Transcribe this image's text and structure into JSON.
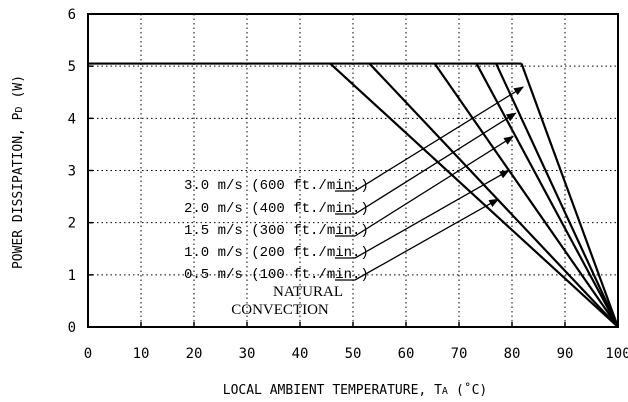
{
  "chart_data": {
    "type": "line",
    "xlabel": "LOCAL AMBIENT TEMPERATURE, T",
    "xlabel_sub": "A",
    "xlabel_unit": "(˚C)",
    "ylabel": "POWER DISSIPATION, P",
    "ylabel_sub": "D",
    "ylabel_unit": "(W)",
    "xlim": [
      0,
      100
    ],
    "ylim": [
      0,
      6
    ],
    "x_ticks": [
      0,
      10,
      20,
      30,
      40,
      50,
      60,
      70,
      80,
      90,
      100
    ],
    "y_ticks": [
      0,
      1,
      2,
      3,
      4,
      5,
      6
    ],
    "grid": true,
    "grid_style": "dotted",
    "series": [
      {
        "name": "NATURAL CONVECTION",
        "x": [
          45.7,
          100
        ],
        "y": [
          5.05,
          0
        ],
        "label_line1": "NATURAL",
        "label_line2": "CONVECTION"
      },
      {
        "name": "0.5 m/s (100 ft./min.)",
        "x": [
          53.1,
          100
        ],
        "y": [
          5.05,
          0
        ]
      },
      {
        "name": "1.0 m/s (200 ft./min.)",
        "x": [
          65.4,
          100
        ],
        "y": [
          5.05,
          0
        ]
      },
      {
        "name": "1.5 m/s (300 ft./min.)",
        "x": [
          73.3,
          100
        ],
        "y": [
          5.05,
          0
        ]
      },
      {
        "name": "2.0 m/s (400 ft./min.)",
        "x": [
          77.0,
          100
        ],
        "y": [
          5.05,
          0
        ]
      },
      {
        "name": "3.0 m/s (600 ft./min.)",
        "x": [
          81.8,
          100
        ],
        "y": [
          5.05,
          0
        ]
      }
    ],
    "max_power_line": {
      "y": 5.05,
      "x": [
        0,
        81.8
      ]
    },
    "annotations": [
      {
        "text": "3.0 m/s (600 ft./min.)",
        "arrow_to_x": 82.1,
        "arrow_to_y": 4.6
      },
      {
        "text": "2.0 m/s (400 ft./min.)",
        "arrow_to_x": 80.7,
        "arrow_to_y": 4.1
      },
      {
        "text": "1.5 m/s (300 ft./min.)",
        "arrow_to_x": 80.2,
        "arrow_to_y": 3.65
      },
      {
        "text": "1.0 m/s (200 ft./min.)",
        "arrow_to_x": 79.4,
        "arrow_to_y": 3.0
      },
      {
        "text": "0.5 m/s (100 ft./min.)",
        "arrow_to_x": 77.4,
        "arrow_to_y": 2.45
      },
      {
        "text": "NATURAL",
        "arrow_to_x": null,
        "arrow_to_y": null
      },
      {
        "text": "CONVECTION",
        "arrow_to_x": null,
        "arrow_to_y": null
      }
    ]
  }
}
